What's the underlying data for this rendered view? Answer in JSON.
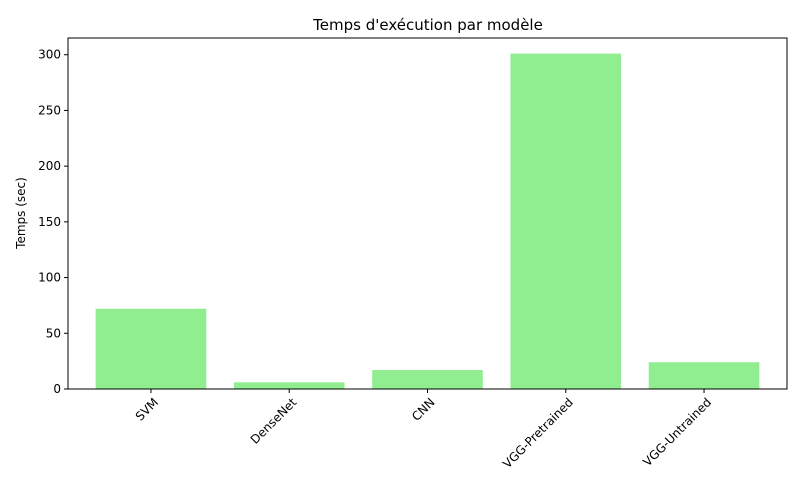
{
  "chart_data": {
    "type": "bar",
    "title": "Temps d'exécution par modèle",
    "xlabel": "",
    "ylabel": "Temps (sec)",
    "categories": [
      "SVM",
      "DenseNet",
      "CNN",
      "VGG-Pretrained",
      "VGG-Untrained"
    ],
    "values": [
      72,
      6,
      17,
      301,
      24
    ],
    "ylim": [
      0,
      315
    ],
    "yticks": [
      0,
      50,
      100,
      150,
      200,
      250,
      300
    ],
    "bar_color": "#90ee90",
    "grid": false,
    "legend": "none",
    "xtick_rotation": 45
  }
}
